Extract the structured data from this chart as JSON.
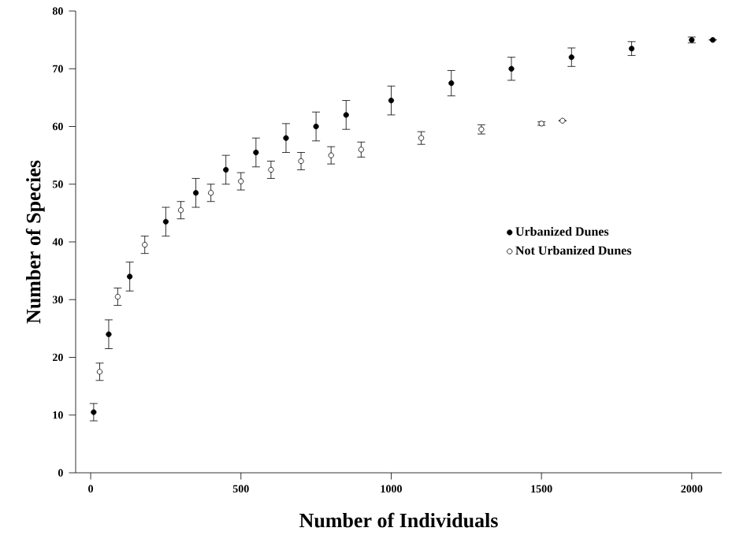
{
  "chart_data": {
    "type": "scatter",
    "xlabel": "Number of Individuals",
    "ylabel": "Number of Species",
    "xlim": [
      -50,
      2100
    ],
    "ylim": [
      0,
      80
    ],
    "xticks": [
      0,
      500,
      1000,
      1500,
      2000
    ],
    "yticks": [
      0,
      10,
      20,
      30,
      40,
      50,
      60,
      70,
      80
    ],
    "grid": false,
    "legend": "right",
    "marker": "circle",
    "series": [
      {
        "name": "Urbanized Dunes",
        "color": "#000000",
        "x": [
          10,
          60,
          130,
          250,
          350,
          450,
          550,
          650,
          750,
          850,
          1000,
          1200,
          1400,
          1600,
          1800,
          2000,
          2070
        ],
        "values": [
          10.5,
          24,
          34,
          43.5,
          48.5,
          52.5,
          55.5,
          58,
          60,
          62,
          64.5,
          67.5,
          70,
          72,
          73.5,
          75,
          75
        ],
        "errors": [
          1.5,
          2.5,
          2.5,
          2.5,
          2.5,
          2.5,
          2.5,
          2.5,
          2.5,
          2.5,
          2.5,
          2.2,
          2,
          1.6,
          1.2,
          0.5,
          0
        ]
      },
      {
        "name": "Not Urbanized Dunes",
        "color": "#ffffff",
        "x": [
          30,
          90,
          180,
          300,
          400,
          500,
          600,
          700,
          800,
          900,
          1100,
          1300,
          1500,
          1570
        ],
        "values": [
          17.5,
          30.5,
          39.5,
          45.5,
          48.5,
          50.5,
          52.5,
          54,
          55,
          56,
          58,
          59.5,
          60.5,
          61
        ],
        "errors": [
          1.5,
          1.5,
          1.5,
          1.5,
          1.5,
          1.5,
          1.5,
          1.5,
          1.5,
          1.3,
          1.1,
          0.8,
          0.3,
          0
        ]
      }
    ]
  }
}
